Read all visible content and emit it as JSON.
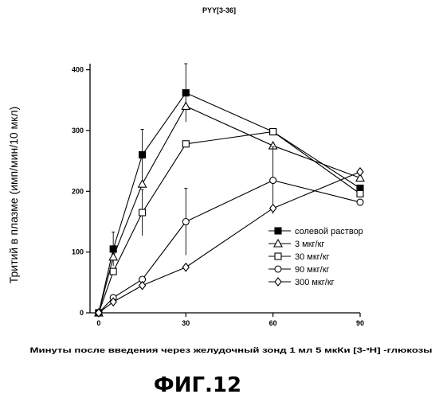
{
  "chart_data": {
    "type": "line",
    "title": "PYY[3-36]",
    "xlabel": "Минуты после введения через желудочный зонд 1 мл 5 мкКи [3-³H] -глюкозы",
    "ylabel": "Тритий в плазме (имп/мин/10 мкл)",
    "x_ticks": [
      0,
      30,
      60,
      90
    ],
    "y_ticks": [
      0,
      100,
      200,
      300,
      400
    ],
    "xlim": [
      -3,
      90
    ],
    "ylim": [
      0,
      410
    ],
    "legend_position": "right",
    "series": [
      {
        "name": "солевой раствор",
        "marker": "square-filled",
        "points": [
          [
            0,
            0
          ],
          [
            5,
            105
          ],
          [
            15,
            260
          ],
          [
            30,
            362
          ],
          [
            60,
            298
          ],
          [
            90,
            205
          ]
        ],
        "errors": [
          0,
          28,
          42,
          48,
          0,
          0
        ]
      },
      {
        "name": "3  мкг/кг",
        "marker": "triangle-open",
        "points": [
          [
            0,
            0
          ],
          [
            5,
            92
          ],
          [
            15,
            212
          ],
          [
            30,
            340
          ],
          [
            60,
            275
          ],
          [
            90,
            222
          ]
        ],
        "errors": [
          0,
          0,
          0,
          0,
          0,
          0
        ]
      },
      {
        "name": "30 мкг/кг",
        "marker": "square-open",
        "points": [
          [
            0,
            0
          ],
          [
            5,
            68
          ],
          [
            15,
            165
          ],
          [
            30,
            278
          ],
          [
            60,
            298
          ],
          [
            90,
            196
          ]
        ],
        "errors": [
          0,
          0,
          38,
          0,
          0,
          0
        ]
      },
      {
        "name": "90 мкг/кг",
        "marker": "circle-open",
        "points": [
          [
            0,
            0
          ],
          [
            5,
            25
          ],
          [
            15,
            55
          ],
          [
            30,
            150
          ],
          [
            60,
            218
          ],
          [
            90,
            182
          ]
        ],
        "errors": [
          0,
          0,
          0,
          55,
          55,
          0
        ]
      },
      {
        "name": "300 мкг/кг",
        "marker": "diamond-open",
        "points": [
          [
            0,
            0
          ],
          [
            5,
            18
          ],
          [
            15,
            45
          ],
          [
            30,
            75
          ],
          [
            60,
            172
          ],
          [
            90,
            232
          ]
        ],
        "errors": [
          0,
          0,
          0,
          0,
          0,
          0
        ]
      }
    ]
  },
  "figure_caption": "ФИГ.12"
}
